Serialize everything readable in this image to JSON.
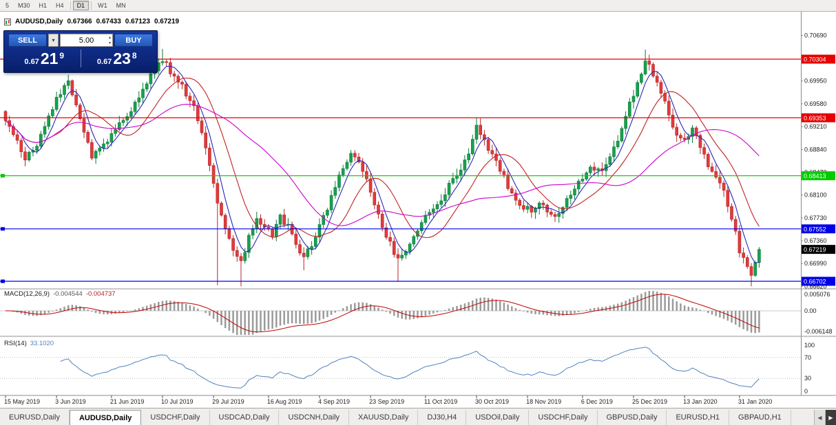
{
  "toolbar": {
    "timeframes": [
      "5",
      "M30",
      "H1",
      "H4",
      "D1",
      "W1",
      "MN"
    ],
    "active": "D1",
    "separators_after": [
      "H4",
      "D1"
    ]
  },
  "chart": {
    "title": {
      "symbol": "AUDUSD,Daily",
      "open": "0.67366",
      "high": "0.67433",
      "low": "0.67123",
      "close": "0.67219"
    },
    "trade_widget": {
      "sell_label": "SELL",
      "buy_label": "BUY",
      "volume": "5.00",
      "sell_price": {
        "prefix": "0.67",
        "big": "21",
        "sup": "9"
      },
      "buy_price": {
        "prefix": "0.67",
        "big": "23",
        "sup": "8"
      }
    },
    "price_axis_ticks": [
      "0.70690",
      "0.70320",
      "0.69950",
      "0.69580",
      "0.69210",
      "0.68840",
      "0.68470",
      "0.68100",
      "0.67730",
      "0.67360",
      "0.66990",
      "0.66620"
    ],
    "levels": [
      {
        "price": 0.70304,
        "label": "0.70304",
        "color": "#e60000",
        "marker": false
      },
      {
        "price": 0.69353,
        "label": "0.69353",
        "color": "#e60000",
        "marker": false
      },
      {
        "price": 0.68413,
        "label": "0.68413",
        "color": "#00cc00",
        "marker": true
      },
      {
        "price": 0.67552,
        "label": "0.67552",
        "color": "#0000e6",
        "marker": true
      },
      {
        "price": 0.66702,
        "label": "0.66702",
        "color": "#0000e6",
        "marker": true
      }
    ],
    "current": {
      "price": 0.67219,
      "label": "0.67219",
      "color": "#000000"
    },
    "date_axis": {
      "labels": [
        "15 May 2019",
        "3 Jun 2019",
        "21 Jun 2019",
        "10 Jul 2019",
        "29 Jul 2019",
        "16 Aug 2019",
        "4 Sep 2019",
        "23 Sep 2019",
        "11 Oct 2019",
        "30 Oct 2019",
        "18 Nov 2019",
        "6 Dec 2019",
        "25 Dec 2019",
        "13 Jan 2020",
        "31 Jan 2020"
      ],
      "bar_indices": [
        0,
        13,
        27,
        40,
        53,
        67,
        80,
        93,
        107,
        120,
        133,
        147,
        160,
        173,
        187
      ]
    }
  },
  "chart_data": {
    "type": "candlestick",
    "symbol": "AUDUSD",
    "timeframe": "Daily",
    "bar_count": 193,
    "last_close": 0.67219,
    "ylim": [
      0.66602,
      0.71073
    ],
    "price_anchors": [
      [
        0,
        0.6935
      ],
      [
        2,
        0.6905
      ],
      [
        5,
        0.687
      ],
      [
        8,
        0.689
      ],
      [
        11,
        0.694
      ],
      [
        14,
        0.6975
      ],
      [
        16,
        0.6995
      ],
      [
        18,
        0.696
      ],
      [
        20,
        0.691
      ],
      [
        22,
        0.6875
      ],
      [
        25,
        0.689
      ],
      [
        28,
        0.6915
      ],
      [
        31,
        0.694
      ],
      [
        34,
        0.697
      ],
      [
        37,
        0.7005
      ],
      [
        40,
        0.703
      ],
      [
        42,
        0.701
      ],
      [
        45,
        0.6985
      ],
      [
        48,
        0.6955
      ],
      [
        50,
        0.6915
      ],
      [
        52,
        0.686
      ],
      [
        54,
        0.68
      ],
      [
        56,
        0.676
      ],
      [
        58,
        0.672
      ],
      [
        60,
        0.67
      ],
      [
        62,
        0.674
      ],
      [
        64,
        0.677
      ],
      [
        66,
        0.676
      ],
      [
        68,
        0.6745
      ],
      [
        70,
        0.6775
      ],
      [
        72,
        0.676
      ],
      [
        74,
        0.673
      ],
      [
        76,
        0.6705
      ],
      [
        78,
        0.673
      ],
      [
        80,
        0.676
      ],
      [
        82,
        0.679
      ],
      [
        84,
        0.682
      ],
      [
        86,
        0.6855
      ],
      [
        88,
        0.688
      ],
      [
        90,
        0.686
      ],
      [
        92,
        0.6835
      ],
      [
        94,
        0.679
      ],
      [
        96,
        0.676
      ],
      [
        98,
        0.673
      ],
      [
        100,
        0.6705
      ],
      [
        102,
        0.672
      ],
      [
        104,
        0.6745
      ],
      [
        106,
        0.6765
      ],
      [
        108,
        0.678
      ],
      [
        110,
        0.6795
      ],
      [
        112,
        0.6815
      ],
      [
        114,
        0.6835
      ],
      [
        116,
        0.6855
      ],
      [
        118,
        0.688
      ],
      [
        120,
        0.692
      ],
      [
        122,
        0.69
      ],
      [
        124,
        0.6875
      ],
      [
        126,
        0.685
      ],
      [
        128,
        0.6825
      ],
      [
        130,
        0.6805
      ],
      [
        132,
        0.679
      ],
      [
        134,
        0.6785
      ],
      [
        136,
        0.68
      ],
      [
        138,
        0.6785
      ],
      [
        140,
        0.6775
      ],
      [
        142,
        0.6795
      ],
      [
        144,
        0.6815
      ],
      [
        146,
        0.683
      ],
      [
        148,
        0.6845
      ],
      [
        150,
        0.6855
      ],
      [
        152,
        0.6845
      ],
      [
        154,
        0.687
      ],
      [
        156,
        0.69
      ],
      [
        158,
        0.694
      ],
      [
        160,
        0.6975
      ],
      [
        162,
        0.701
      ],
      [
        163,
        0.703
      ],
      [
        165,
        0.7005
      ],
      [
        167,
        0.698
      ],
      [
        169,
        0.6935
      ],
      [
        171,
        0.6905
      ],
      [
        173,
        0.6895
      ],
      [
        175,
        0.6915
      ],
      [
        177,
        0.689
      ],
      [
        179,
        0.686
      ],
      [
        181,
        0.684
      ],
      [
        183,
        0.6815
      ],
      [
        185,
        0.6775
      ],
      [
        187,
        0.672
      ],
      [
        189,
        0.6695
      ],
      [
        190,
        0.6675
      ],
      [
        192,
        0.67219
      ]
    ],
    "wick_overrides": [
      {
        "i": 16,
        "high": 0.7005
      },
      {
        "i": 40,
        "high": 0.7047
      },
      {
        "i": 54,
        "low": 0.6664
      },
      {
        "i": 60,
        "low": 0.6662
      },
      {
        "i": 76,
        "low": 0.6688
      },
      {
        "i": 100,
        "low": 0.667
      },
      {
        "i": 120,
        "high": 0.6935
      },
      {
        "i": 163,
        "high": 0.7046
      },
      {
        "i": 190,
        "low": 0.6662
      }
    ],
    "colors": {
      "up": "#18a04e",
      "up_dark": "#0b7a38",
      "down": "#e23b3b",
      "down_dark": "#b32424"
    },
    "moving_averages": [
      {
        "period": 5,
        "color": "#2626b8"
      },
      {
        "period": 13,
        "color": "#c22020"
      },
      {
        "period": 34,
        "color": "#cc00cc"
      }
    ]
  },
  "macd": {
    "name": "MACD(12,26,9)",
    "value_main": "-0.004544",
    "value_signal": "-0.004737",
    "axis_labels": [
      "0.005076",
      "0.00",
      "-0.006148"
    ],
    "ylim": [
      -0.006148,
      0.005076
    ],
    "hist_color": "#9a9a9a",
    "signal_color": "#c00000"
  },
  "rsi": {
    "name": "RSI(14)",
    "value": "33.1020",
    "axis_labels": [
      "100",
      "70",
      "30",
      "0"
    ],
    "level_lines": [
      70,
      30
    ],
    "line_color": "#4f81bd"
  },
  "tabs": {
    "items": [
      "EURUSD,Daily",
      "AUDUSD,Daily",
      "USDCHF,Daily",
      "USDCAD,Daily",
      "USDCNH,Daily",
      "XAUUSD,Daily",
      "DJ30,H4",
      "USDOil,Daily",
      "USDCHF,Daily",
      "GBPUSD,Daily",
      "EURUSD,H1",
      "GBPAUD,H1"
    ],
    "active_index": 1,
    "nav": {
      "left": "◀",
      "right": "▶"
    }
  }
}
